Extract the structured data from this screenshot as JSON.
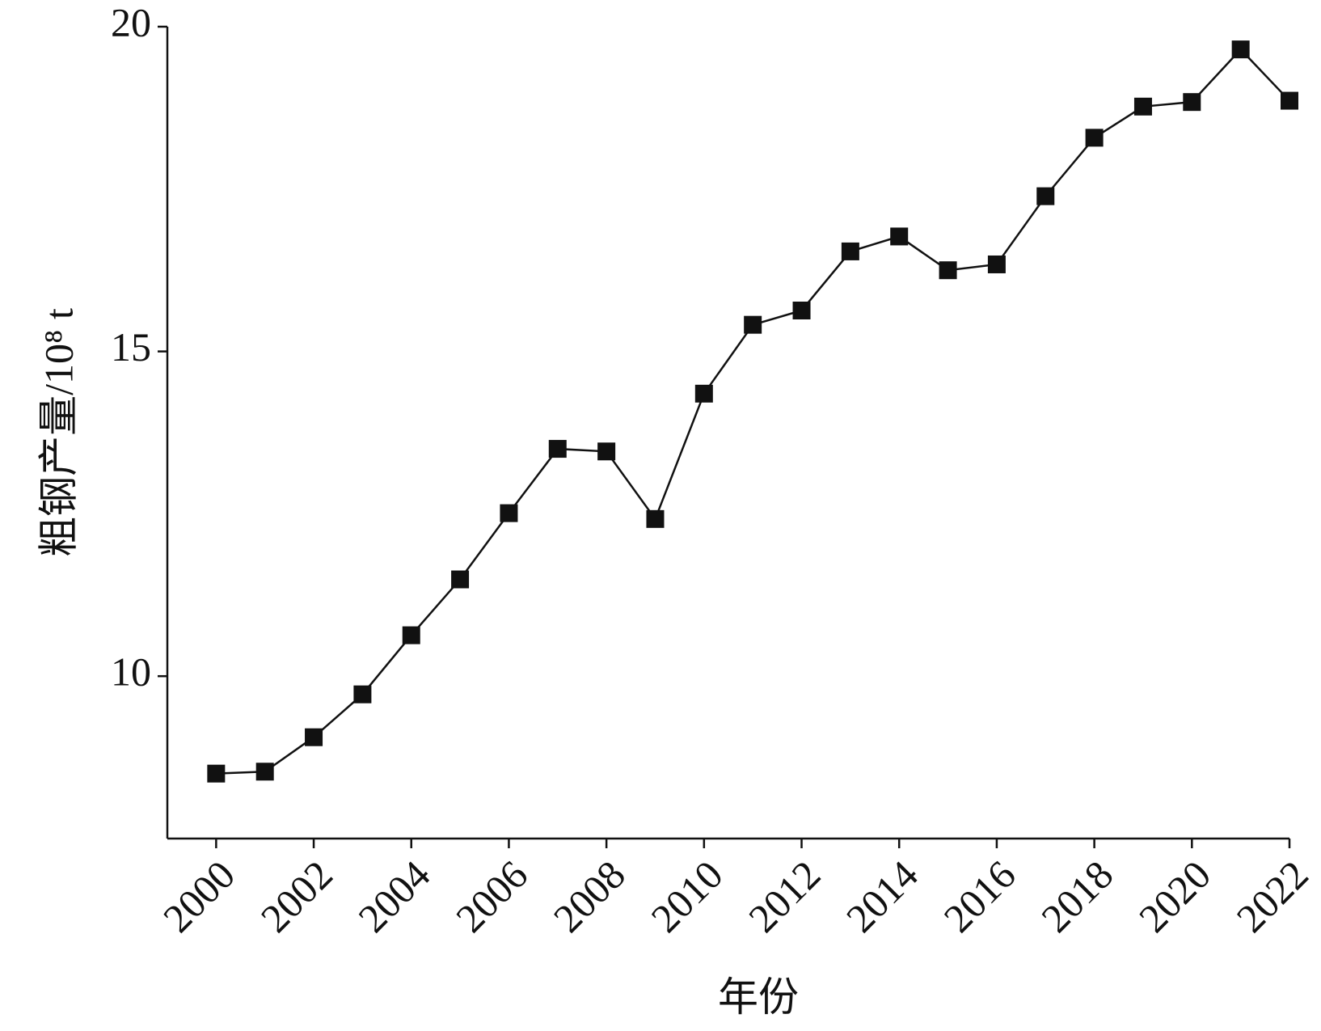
{
  "chart_data": {
    "type": "line",
    "x_label": "年份",
    "y_label": "粗钢产量/10⁸ t",
    "x": [
      2000,
      2001,
      2002,
      2003,
      2004,
      2005,
      2006,
      2007,
      2008,
      2009,
      2010,
      2011,
      2012,
      2013,
      2014,
      2015,
      2016,
      2017,
      2018,
      2019,
      2020,
      2021,
      2022
    ],
    "series": [
      {
        "color": "#111111",
        "values": [
          8.5,
          8.53,
          9.06,
          9.72,
          10.63,
          11.49,
          12.51,
          13.5,
          13.46,
          12.42,
          14.35,
          15.41,
          15.63,
          16.54,
          16.77,
          16.25,
          16.34,
          17.39,
          18.29,
          18.77,
          18.84,
          19.65,
          18.86
        ]
      }
    ],
    "xlim": [
      1999,
      2022
    ],
    "xticks": [
      2000,
      2002,
      2004,
      2006,
      2008,
      2010,
      2012,
      2014,
      2016,
      2018,
      2020,
      2022
    ],
    "ylim": [
      7.5,
      20
    ],
    "yticks": [
      10,
      15,
      20
    ],
    "grid": false
  }
}
